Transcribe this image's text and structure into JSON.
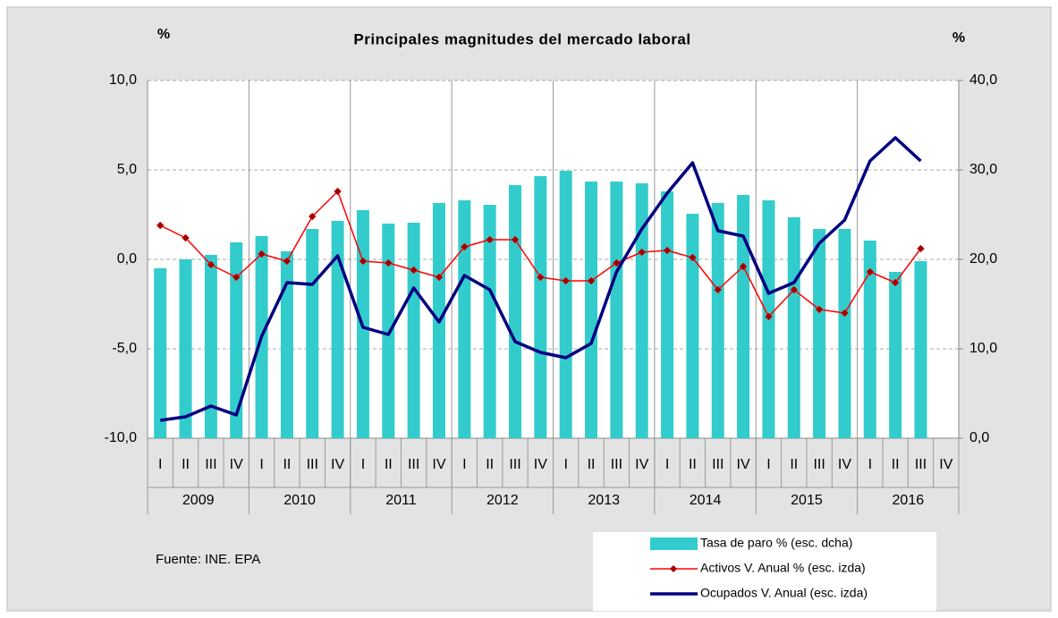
{
  "chart_data": {
    "type": "combo",
    "title": "Principales magnitudes del mercado laboral",
    "y_axis_label": "%",
    "y2_axis_label": "%",
    "source": "Fuente: INE. EPA",
    "categories": [
      "I",
      "II",
      "III",
      "IV",
      "I",
      "II",
      "III",
      "IV",
      "I",
      "II",
      "III",
      "IV",
      "I",
      "II",
      "III",
      "IV",
      "I",
      "II",
      "III",
      "IV",
      "I",
      "II",
      "III",
      "IV",
      "I",
      "II",
      "III",
      "IV",
      "I",
      "II",
      "III",
      "IV"
    ],
    "years": [
      "2009",
      "2010",
      "2011",
      "2012",
      "2013",
      "2014",
      "2015",
      "2016"
    ],
    "ylim": [
      -10,
      10
    ],
    "yticks": [
      {
        "value": -10,
        "label": "-10,0"
      },
      {
        "value": -5,
        "label": "-5,0"
      },
      {
        "value": 0,
        "label": "0,0"
      },
      {
        "value": 5,
        "label": "5,0"
      },
      {
        "value": 10,
        "label": "10,0"
      }
    ],
    "y2lim": [
      0,
      40
    ],
    "y2ticks": [
      {
        "value": 0,
        "label": "0,0"
      },
      {
        "value": 10,
        "label": "10,0"
      },
      {
        "value": 20,
        "label": "20,0"
      },
      {
        "value": 30,
        "label": "30,0"
      },
      {
        "value": 40,
        "label": "40,0"
      }
    ],
    "grid": true,
    "series": [
      {
        "name": "Tasa de paro % (esc. dcha)",
        "type": "bar",
        "axis": "y2",
        "color": "#33cccc",
        "values": [
          19.0,
          20.0,
          20.5,
          21.9,
          22.6,
          20.9,
          23.4,
          24.3,
          25.5,
          24.0,
          24.1,
          26.3,
          26.6,
          26.1,
          28.3,
          29.3,
          29.9,
          28.7,
          28.7,
          28.5,
          27.6,
          25.1,
          26.3,
          27.2,
          26.6,
          24.7,
          23.4,
          23.4,
          22.1,
          18.6,
          19.8,
          null
        ]
      },
      {
        "name": "Activos V. Anual % (esc. izda)",
        "type": "line",
        "marker": "diamond",
        "axis": "y",
        "color": "#ff0000",
        "marker_color": "#a00000",
        "values": [
          1.9,
          1.2,
          -0.3,
          -1.0,
          0.3,
          -0.1,
          2.4,
          3.8,
          -0.1,
          -0.2,
          -0.6,
          -1.0,
          0.7,
          1.1,
          1.1,
          -1.0,
          -1.2,
          -1.2,
          -0.2,
          0.4,
          0.5,
          0.1,
          -1.7,
          -0.4,
          -3.2,
          -1.7,
          -2.8,
          -3.0,
          -0.7,
          -1.3,
          0.6,
          null
        ]
      },
      {
        "name": "Ocupados V. Anual (esc. izda)",
        "type": "line",
        "axis": "y",
        "color": "#000080",
        "values": [
          -9.0,
          -8.8,
          -8.2,
          -8.7,
          -4.3,
          -1.3,
          -1.4,
          0.2,
          -3.8,
          -4.2,
          -1.6,
          -3.5,
          -0.9,
          -1.7,
          -4.6,
          -5.2,
          -5.5,
          -4.7,
          -0.7,
          1.7,
          3.7,
          5.4,
          1.6,
          1.3,
          -1.9,
          -1.3,
          0.9,
          2.2,
          5.5,
          6.8,
          5.5,
          null
        ]
      }
    ]
  }
}
